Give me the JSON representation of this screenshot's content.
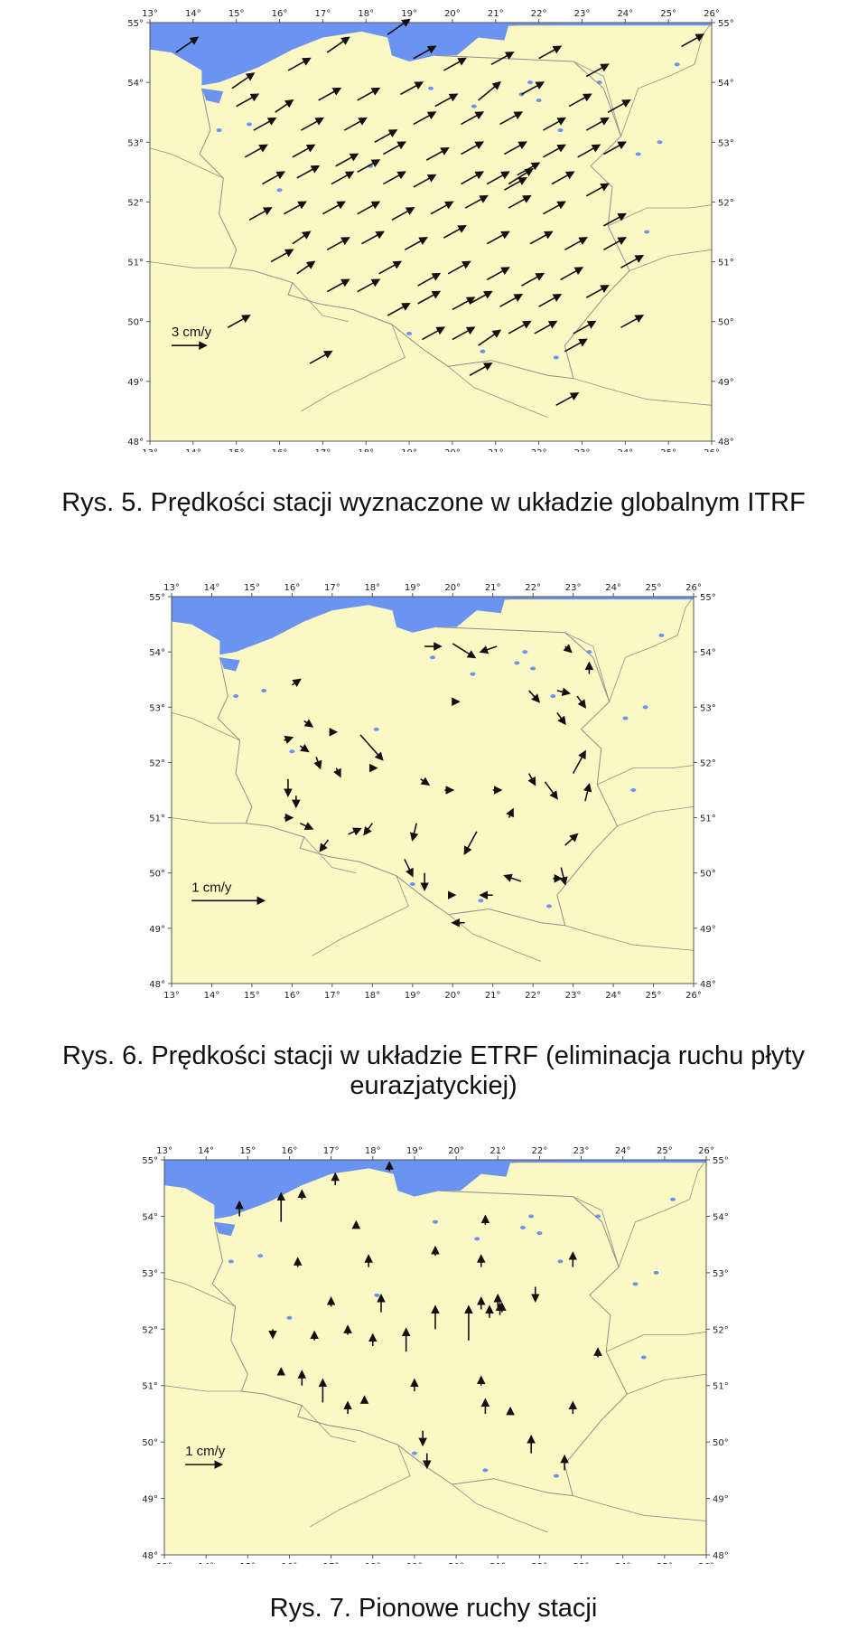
{
  "figures": [
    {
      "id": "fig5",
      "caption": "Rys. 5. Prędkości stacji wyznaczone w układzie globalnym ITRF",
      "scale_label": "3 cm/y",
      "lon_ticks": [
        "13°",
        "14°",
        "15°",
        "16°",
        "17°",
        "18°",
        "19°",
        "20°",
        "21°",
        "22°",
        "23°",
        "24°",
        "25°",
        "26°"
      ],
      "lat_ticks": [
        "55°",
        "54°",
        "53°",
        "52°",
        "51°",
        "50°",
        "49°",
        "48°"
      ],
      "lon_range": [
        13,
        26
      ],
      "lat_range": [
        48,
        55
      ]
    },
    {
      "id": "fig6",
      "caption": "Rys. 6. Prędkości stacji w układzie ETRF (eliminacja ruchu płyty eurazjatyckiej)",
      "scale_label": "1 cm/y",
      "lon_ticks": [
        "13°",
        "14°",
        "15°",
        "16°",
        "17°",
        "18°",
        "19°",
        "20°",
        "21°",
        "22°",
        "23°",
        "24°",
        "25°",
        "26°"
      ],
      "lat_ticks": [
        "55°",
        "54°",
        "53°",
        "52°",
        "51°",
        "50°",
        "49°",
        "48°"
      ],
      "lon_range": [
        13,
        26
      ],
      "lat_range": [
        48,
        55
      ]
    },
    {
      "id": "fig7",
      "caption": "Rys. 7. Pionowe ruchy stacji",
      "scale_label": "1 cm/y",
      "lon_ticks": [
        "13°",
        "14°",
        "15°",
        "16°",
        "17°",
        "18°",
        "19°",
        "20°",
        "21°",
        "22°",
        "23°",
        "24°",
        "25°",
        "26°"
      ],
      "lat_ticks": [
        "55°",
        "54°",
        "53°",
        "52°",
        "51°",
        "50°",
        "49°",
        "48°"
      ],
      "lon_range": [
        13,
        26
      ],
      "lat_range": [
        48,
        55
      ]
    }
  ],
  "colors": {
    "land": "#fbf8c4",
    "water": "#6b93f2",
    "border": "#8f8f8f",
    "arrow": "#111111",
    "frame": "#555555"
  }
}
